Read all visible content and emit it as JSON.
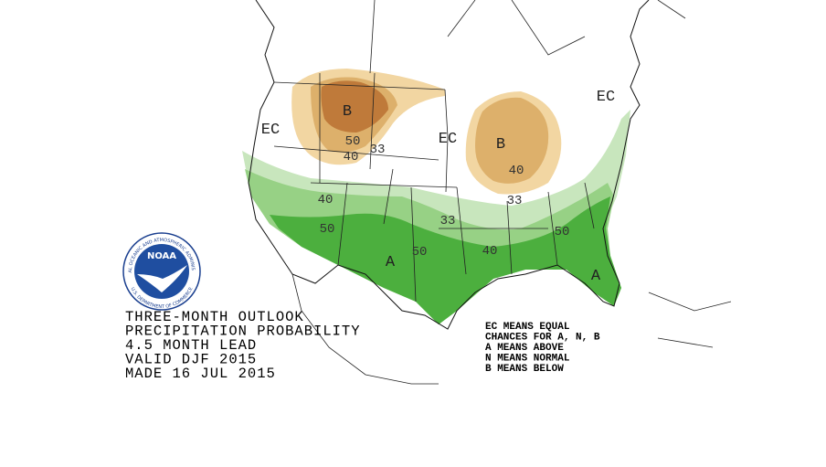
{
  "map_labels": [
    "EC",
    "B",
    "50",
    "40",
    "33",
    "EC",
    "B",
    "40",
    "33",
    "EC",
    "40",
    "50",
    "33",
    "A",
    "50",
    "40",
    "50",
    "A"
  ],
  "title_lines": [
    "THREE-MONTH OUTLOOK",
    "PRECIPITATION PROBABILITY",
    "4.5 MONTH LEAD",
    "VALID DJF 2015",
    "MADE 16 JUL 2015"
  ],
  "legend_lines": [
    "EC MEANS EQUAL",
    "CHANCES FOR A, N, B",
    "A MEANS ABOVE",
    "N MEANS NORMAL",
    "B MEANS BELOW"
  ],
  "logo": {
    "name": "NOAA",
    "top_ring": "NATIONAL OCEANIC AND ATMOSPHERIC ADMINISTRATION",
    "bottom_ring": "U.S. DEPARTMENT OF COMMERCE"
  }
}
